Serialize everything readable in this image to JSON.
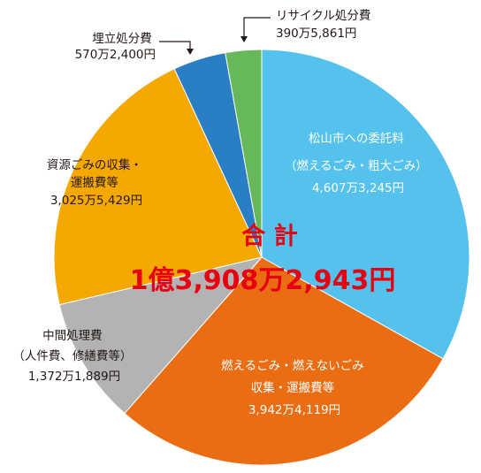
{
  "chart_data": {
    "type": "pie",
    "total": {
      "label": "合 計",
      "value_text": "1億3,908万2,943円",
      "value": 139082943
    },
    "slices": [
      {
        "label": [
          "松山市への委託料",
          "（燃えるごみ・粗大ごみ）"
        ],
        "value_text": "4,607万3,245円",
        "value": 46073245,
        "color": "#55c2ee"
      },
      {
        "label": [
          "燃えるごみ・燃えないごみ",
          "収集・運搬費等"
        ],
        "value_text": "3,942万4,119円",
        "value": 39424119,
        "color": "#ea6d14"
      },
      {
        "label": [
          "中間処理費",
          "（人件費、修繕費等）"
        ],
        "value_text": "1,372万1,889円",
        "value": 13721889,
        "color": "#b3b3b3"
      },
      {
        "label": [
          "資源ごみの収集・",
          "運搬費等"
        ],
        "value_text": "3,025万5,429円",
        "value": 30255429,
        "color": "#f5a800"
      },
      {
        "label": [
          "埋立処分費"
        ],
        "value_text": "570万2,400円",
        "value": 5702400,
        "color": "#2a7ec3"
      },
      {
        "label": [
          "リサイクル処分費"
        ],
        "value_text": "390万5,861円",
        "value": 3905861,
        "color": "#66b85a"
      }
    ]
  }
}
